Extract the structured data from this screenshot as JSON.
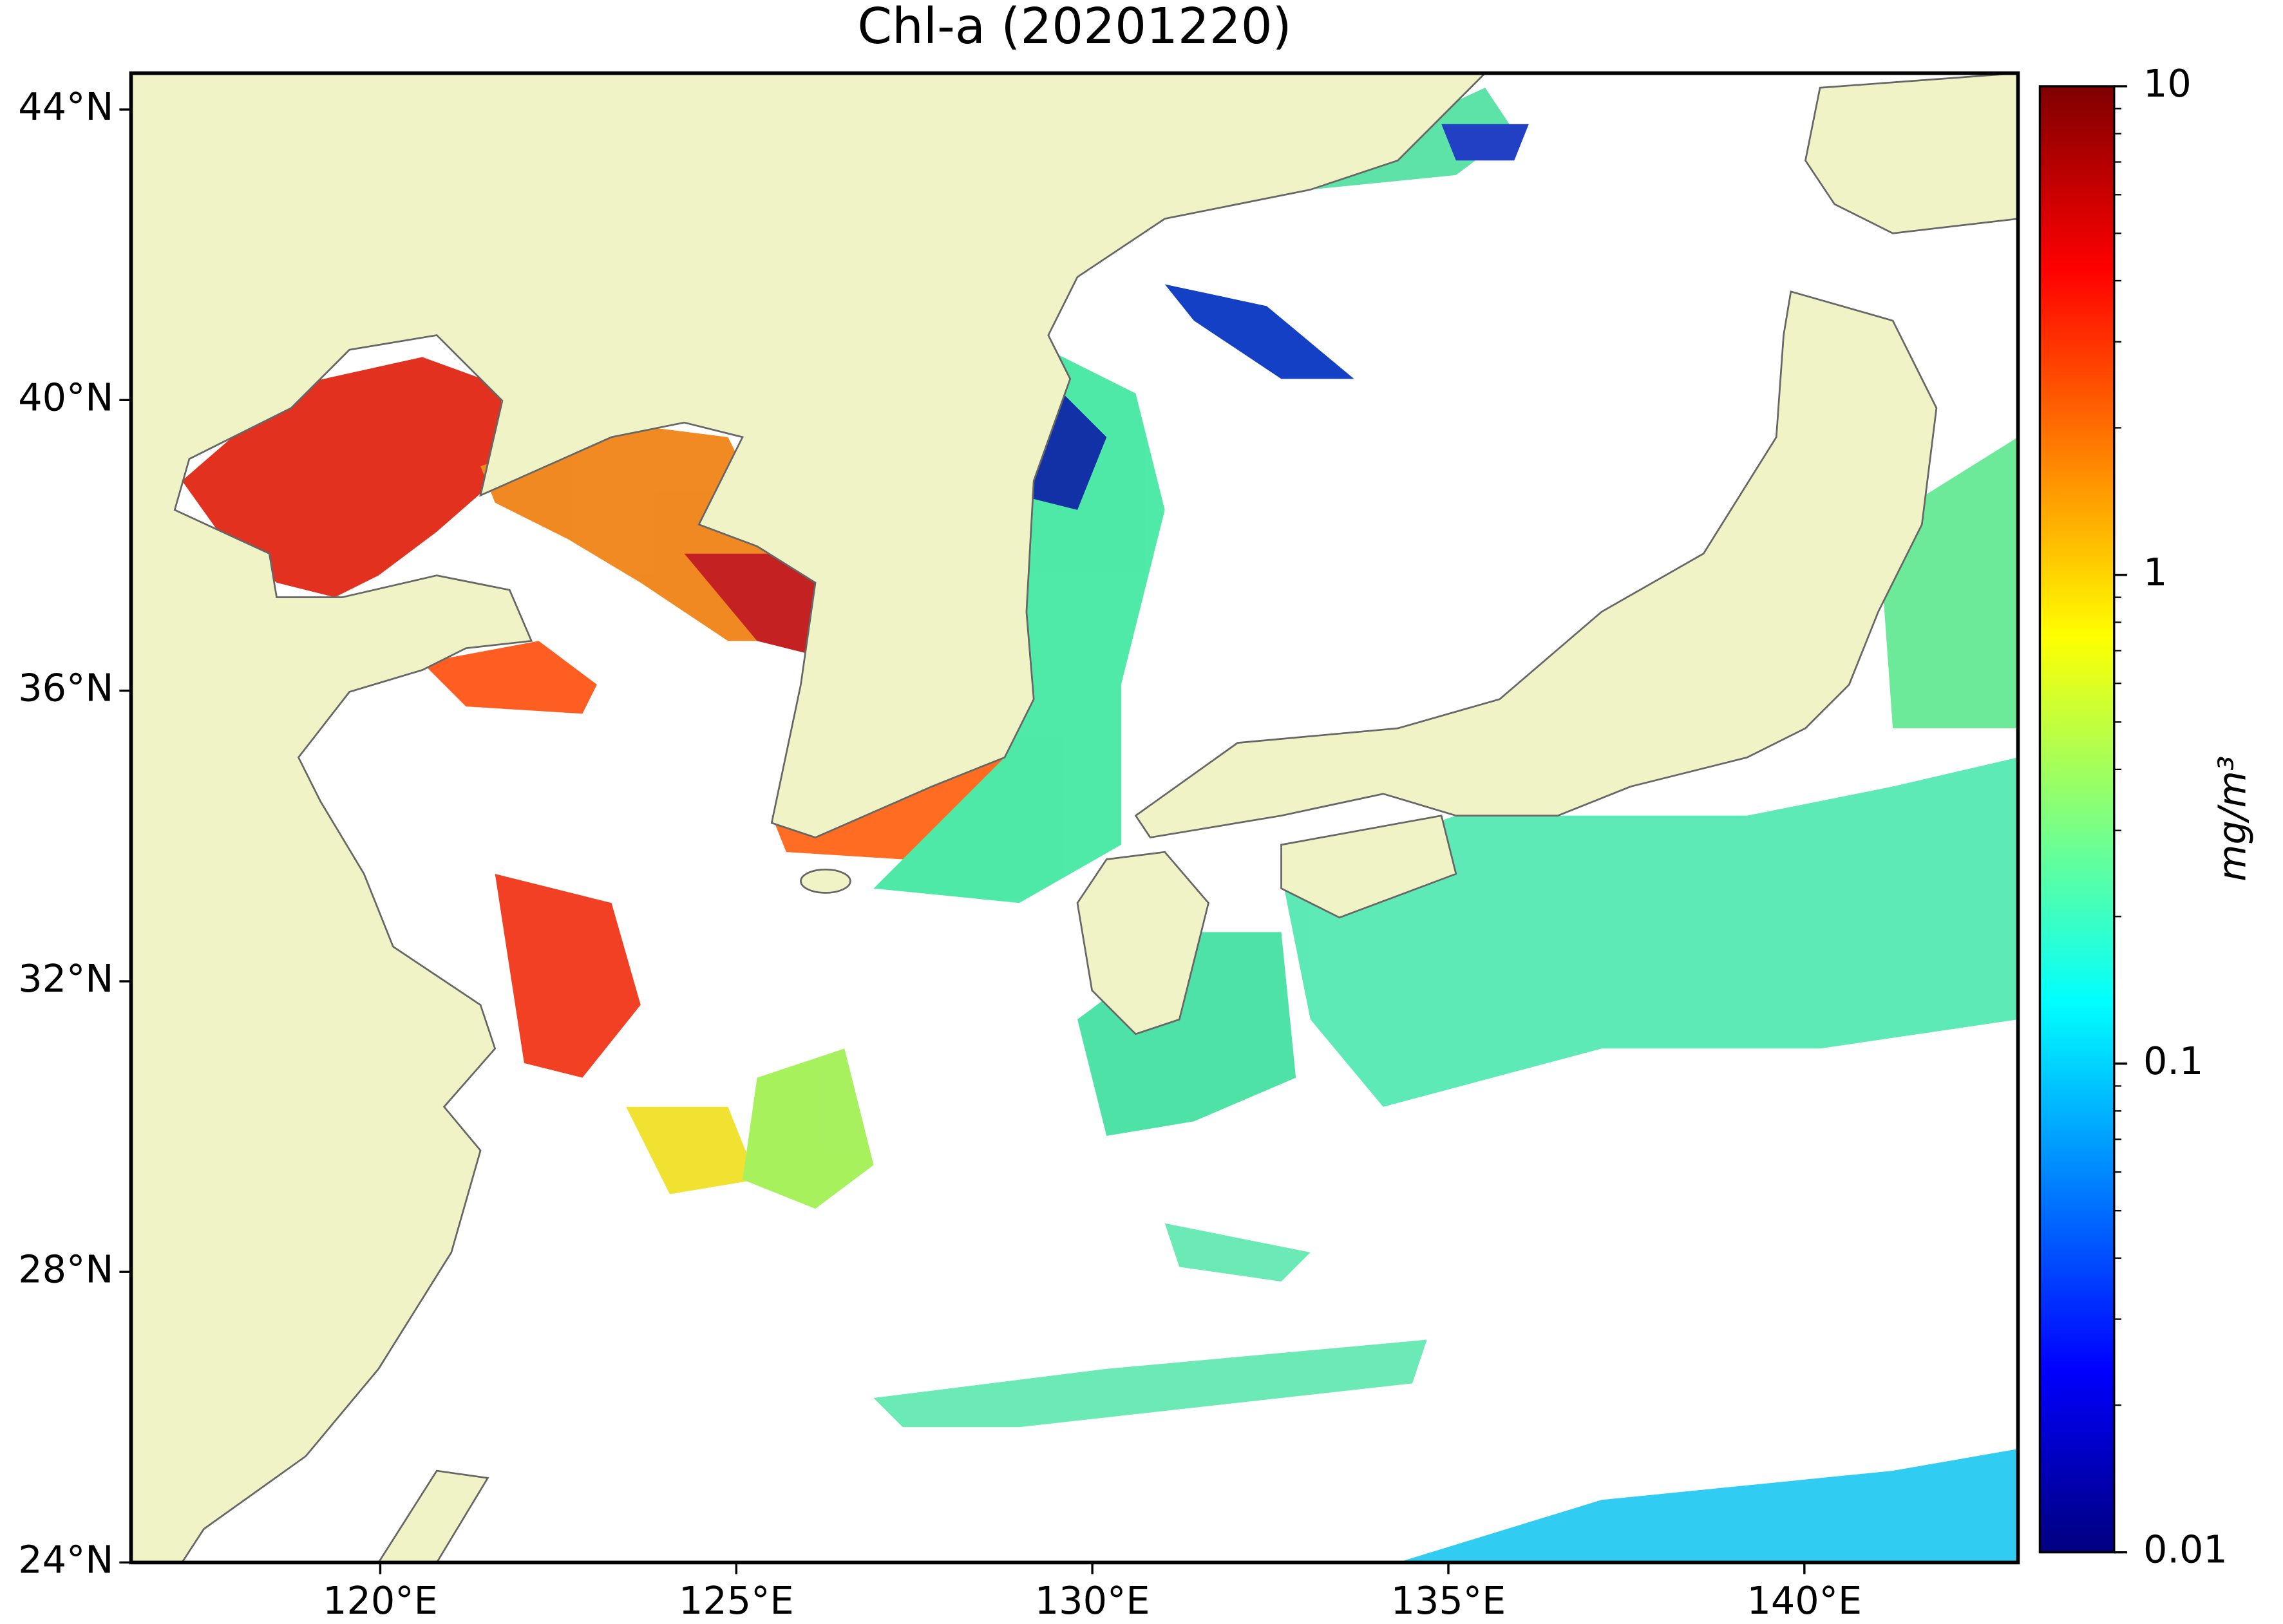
{
  "map": {
    "title": "Chl-a (20201220)",
    "lon_range": [
      116.5,
      143
    ],
    "lat_range": [
      24,
      44.5
    ],
    "lon_ticks": [
      {
        "value": 120,
        "label": "120°E"
      },
      {
        "value": 125,
        "label": "125°E"
      },
      {
        "value": 130,
        "label": "130°E"
      },
      {
        "value": 135,
        "label": "135°E"
      },
      {
        "value": 140,
        "label": "140°E"
      }
    ],
    "lat_ticks": [
      {
        "value": 24,
        "label": "24°N"
      },
      {
        "value": 28,
        "label": "28°N"
      },
      {
        "value": 32,
        "label": "32°N"
      },
      {
        "value": 36,
        "label": "36°N"
      },
      {
        "value": 40,
        "label": "40°N"
      },
      {
        "value": 44,
        "label": "44°N"
      }
    ],
    "colorbar": {
      "label": "mg/m³",
      "scale": "log",
      "range": [
        0.01,
        10
      ],
      "ticks": [
        {
          "value": 0.01,
          "label": "0.01"
        },
        {
          "value": 0.1,
          "label": "0.1"
        },
        1,
        10
      ],
      "colormap": [
        "#00007f",
        "#0000ff",
        "#007fff",
        "#00ffff",
        "#7fff7f",
        "#ffff00",
        "#ff7f00",
        "#ff0000",
        "#7f0000"
      ]
    }
  }
}
